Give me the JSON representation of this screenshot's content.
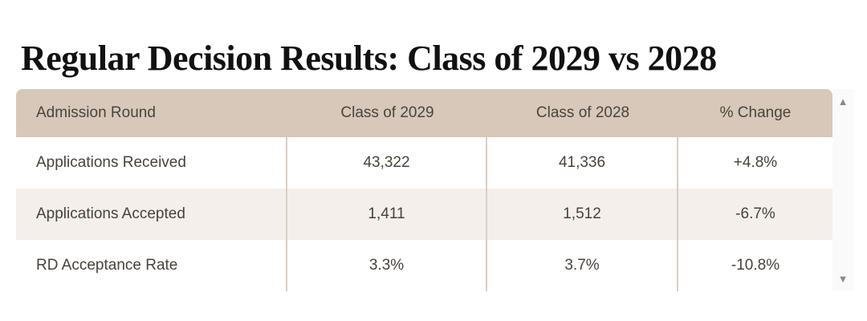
{
  "page": {
    "title": "Regular Decision Results: Class of 2029 vs 2028"
  },
  "table": {
    "columns": [
      "Admission Round",
      "Class of 2029",
      "Class of 2028",
      "% Change"
    ],
    "rows": [
      {
        "label": "Applications Received",
        "class_2029": "43,322",
        "class_2028": "41,336",
        "pct_change": "+4.8%"
      },
      {
        "label": "Applications Accepted",
        "class_2029": "1,411",
        "class_2028": "1,512",
        "pct_change": "-6.7%"
      },
      {
        "label": "RD Acceptance Rate",
        "class_2029": "3.3%",
        "class_2028": "3.7%",
        "pct_change": "-10.8%"
      }
    ]
  },
  "scrollbar": {
    "up_icon": "▲",
    "down_icon": "▼"
  },
  "colors": {
    "header_bg": "#d7c8b9",
    "stripe_bg": "#f4efea",
    "divider": "#d9cfc4",
    "header_text": "#4a443d",
    "body_text": "#48423a",
    "title_text": "#111111",
    "scroll_arrow": "#8a8a8a",
    "scroll_track": "#fafafa"
  }
}
